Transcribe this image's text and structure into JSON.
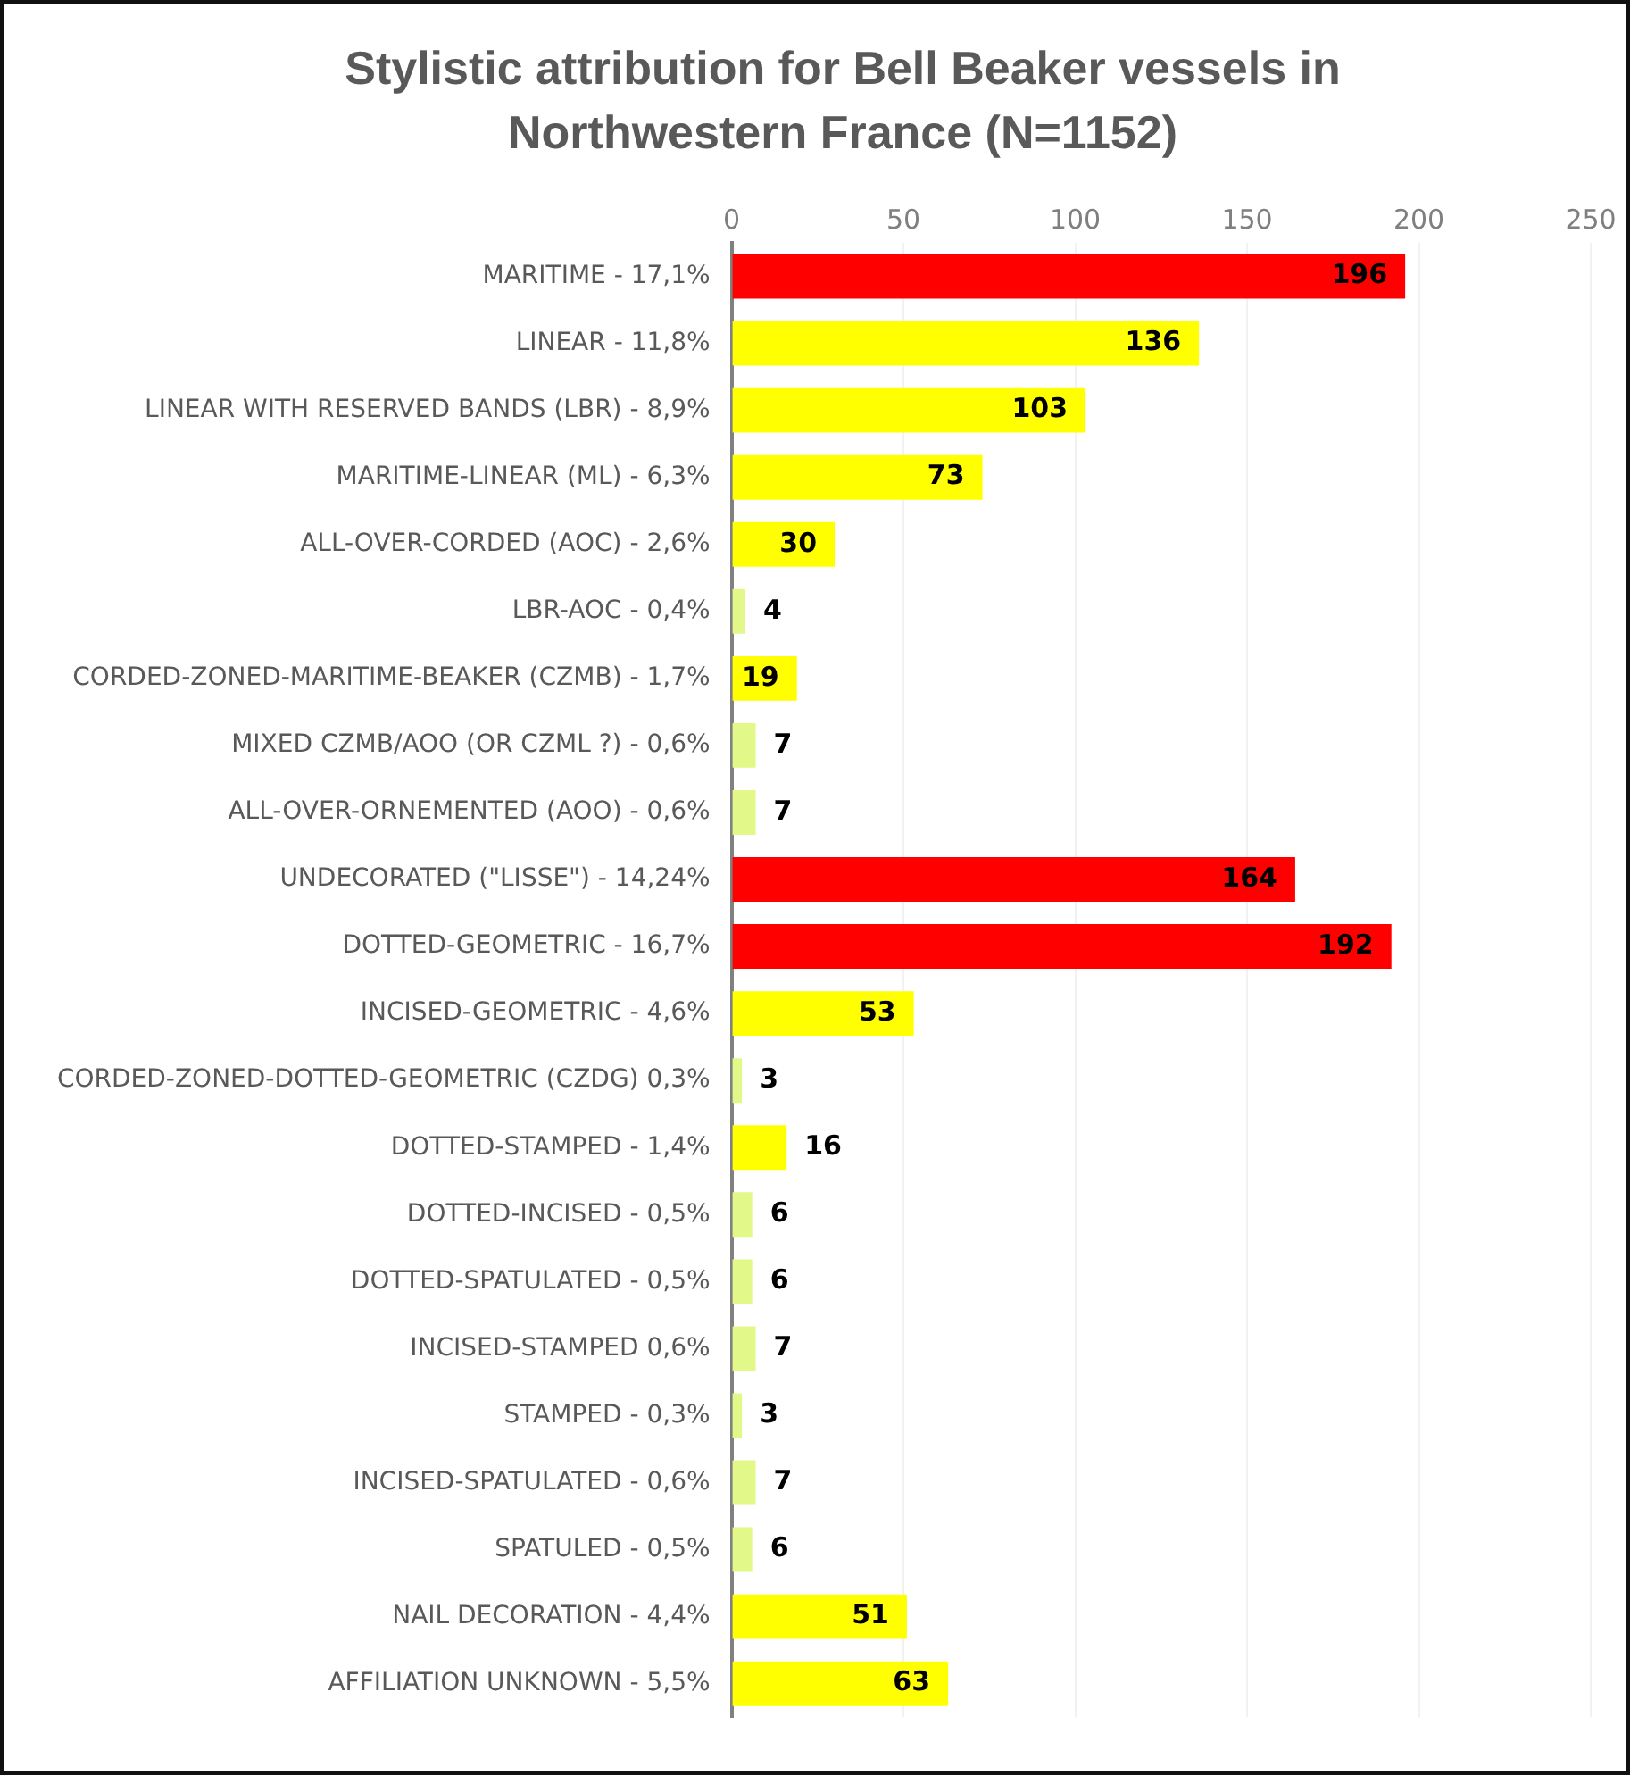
{
  "chart_data": {
    "type": "bar",
    "orientation": "horizontal",
    "title": "Stylistic attribution for Bell Beaker vessels in Northwestern France (N=1152)",
    "categories": [
      "MARITIME - 17,1%",
      "LINEAR - 11,8%",
      "LINEAR WITH RESERVED BANDS (LBR) - 8,9%",
      "MARITIME-LINEAR (ML) - 6,3%",
      "ALL-OVER-CORDED (AOC) - 2,6%",
      "LBR-AOC - 0,4%",
      "CORDED-ZONED-MARITIME-BEAKER (CZMB) - 1,7%",
      "MIXED CZMB/AOO (OR CZML ?) - 0,6%",
      "ALL-OVER-ORNEMENTED (AOO) - 0,6%",
      "UNDECORATED (\"LISSE\") - 14,24%",
      "DOTTED-GEOMETRIC - 16,7%",
      "INCISED-GEOMETRIC - 4,6%",
      "CORDED-ZONED-DOTTED-GEOMETRIC (CZDG) 0,3%",
      "DOTTED-STAMPED - 1,4%",
      "DOTTED-INCISED - 0,5%",
      "DOTTED-SPATULATED - 0,5%",
      "INCISED-STAMPED 0,6%",
      "STAMPED - 0,3%",
      "INCISED-SPATULATED - 0,6%",
      "SPATULED - 0,5%",
      "NAIL DECORATION - 4,4%",
      "AFFILIATION UNKNOWN - 5,5%"
    ],
    "values": [
      196,
      136,
      103,
      73,
      30,
      4,
      19,
      7,
      7,
      164,
      192,
      53,
      3,
      16,
      6,
      6,
      7,
      3,
      7,
      6,
      51,
      63
    ],
    "colors": [
      "#ff0000",
      "#ffff00",
      "#ffff00",
      "#ffff00",
      "#ffff00",
      "#e2f98a",
      "#ffff00",
      "#e2f98a",
      "#e2f98a",
      "#ff0000",
      "#ff0000",
      "#ffff00",
      "#e2f98a",
      "#ffff00",
      "#e2f98a",
      "#e2f98a",
      "#e2f98a",
      "#e2f98a",
      "#e2f98a",
      "#e2f98a",
      "#ffff00",
      "#ffff00"
    ],
    "xlim": [
      0,
      250
    ],
    "xticks": [
      0,
      50,
      100,
      150,
      200,
      250
    ],
    "grid": "x",
    "legend": false,
    "data_labels": true
  }
}
